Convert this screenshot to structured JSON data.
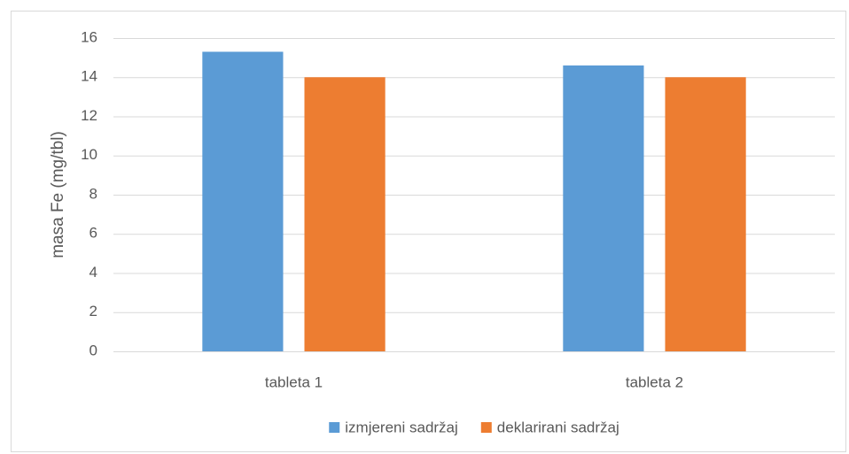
{
  "chart_data": {
    "type": "bar",
    "ylabel": "masa Fe (mg/tbl)",
    "categories": [
      "tableta 1",
      "tableta 2"
    ],
    "series": [
      {
        "name": "izmjereni sadržaj",
        "color": "#5b9bd5",
        "values": [
          15.3,
          14.6
        ]
      },
      {
        "name": "deklarirani sadržaj",
        "color": "#ed7d31",
        "values": [
          14,
          14
        ]
      }
    ],
    "ylim": [
      0,
      16
    ],
    "yticks": [
      0,
      2,
      4,
      6,
      8,
      10,
      12,
      14,
      16
    ],
    "grid": true,
    "legend": "bottom"
  }
}
